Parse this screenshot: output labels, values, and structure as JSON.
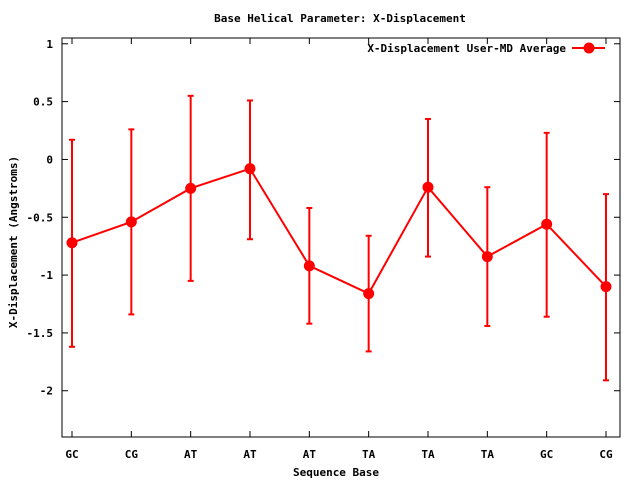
{
  "chart_data": {
    "type": "line",
    "title": "Base  Helical Parameter: X-Displacement",
    "xlabel": "Sequence Base",
    "ylabel": "X-Displacement (Angstroms)",
    "categories": [
      "GC",
      "CG",
      "AT",
      "AT",
      "AT",
      "TA",
      "TA",
      "TA",
      "GC",
      "CG"
    ],
    "ylim": [
      -2.4,
      1.05
    ],
    "yticks": [
      1,
      0.5,
      0,
      -0.5,
      -1,
      -1.5,
      -2
    ],
    "ytick_labels": [
      "1",
      "0.5",
      "0",
      "-0.5",
      "-1",
      "-1.5",
      "-2"
    ],
    "grid": false,
    "legend_position": "top-right",
    "series": [
      {
        "name": "X-Displacement User-MD Average",
        "color": "#ff0000",
        "marker": "circle",
        "values": [
          -0.72,
          -0.54,
          -0.25,
          -0.08,
          -0.92,
          -1.16,
          -0.24,
          -0.84,
          -0.56,
          -1.1
        ],
        "error_low": [
          -1.62,
          -1.34,
          -1.05,
          -0.69,
          -1.42,
          -1.66,
          -0.84,
          -1.44,
          -1.36,
          -1.91
        ],
        "error_high": [
          0.17,
          0.26,
          0.55,
          0.51,
          -0.42,
          -0.66,
          0.35,
          -0.24,
          0.23,
          -0.3
        ]
      }
    ]
  }
}
